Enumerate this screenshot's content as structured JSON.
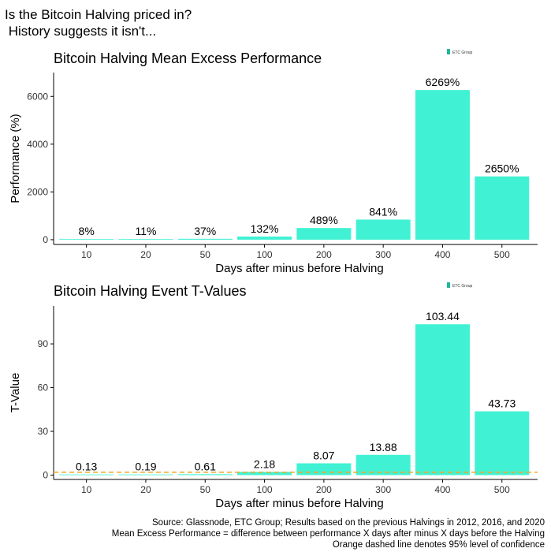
{
  "headline": {
    "line1": "Is the Bitcoin Halving priced in?",
    "line2": " History suggests it isn't..."
  },
  "logo_text": "ETC Group",
  "chart_data": [
    {
      "type": "bar",
      "title": "Bitcoin Halving Mean Excess Performance",
      "xlabel": "Days after minus before Halving",
      "ylabel": "Performance (%)",
      "categories": [
        "10",
        "20",
        "50",
        "100",
        "200",
        "300",
        "400",
        "500"
      ],
      "values": [
        8,
        11,
        37,
        132,
        489,
        841,
        6269,
        2650
      ],
      "labels": [
        "8%",
        "11%",
        "37%",
        "132%",
        "489%",
        "841%",
        "6269%",
        "2650%"
      ],
      "yticks": [
        0,
        2000,
        4000,
        6000
      ],
      "ylim": [
        -200,
        7000
      ],
      "grid": false,
      "bar_color": "#40f2d3"
    },
    {
      "type": "bar",
      "title": "Bitcoin Halving Event T-Values",
      "xlabel": "Days after minus before Halving",
      "ylabel": "T-Value",
      "categories": [
        "10",
        "20",
        "50",
        "100",
        "200",
        "300",
        "400",
        "500"
      ],
      "values": [
        0.13,
        0.19,
        0.61,
        2.18,
        8.07,
        13.88,
        103.44,
        43.73
      ],
      "labels": [
        "0.13",
        "0.19",
        "0.61",
        "2.18",
        "8.07",
        "13.88",
        "103.44",
        "43.73"
      ],
      "yticks": [
        0,
        30,
        60,
        90
      ],
      "ylim": [
        -3,
        116
      ],
      "grid": false,
      "bar_color": "#40f2d3",
      "reference_line": {
        "value": 1.96,
        "color": "#f5a623",
        "style": "dashed"
      }
    }
  ],
  "footer": {
    "line1": "Source: Glassnode, ETC Group; Results based on the previous Halvings in 2012, 2016, and 2020",
    "line2": "Mean Excess Performance = difference between performance X days after minus X days before the Halving",
    "line3": "Orange dashed line denotes 95% level of confidence"
  }
}
